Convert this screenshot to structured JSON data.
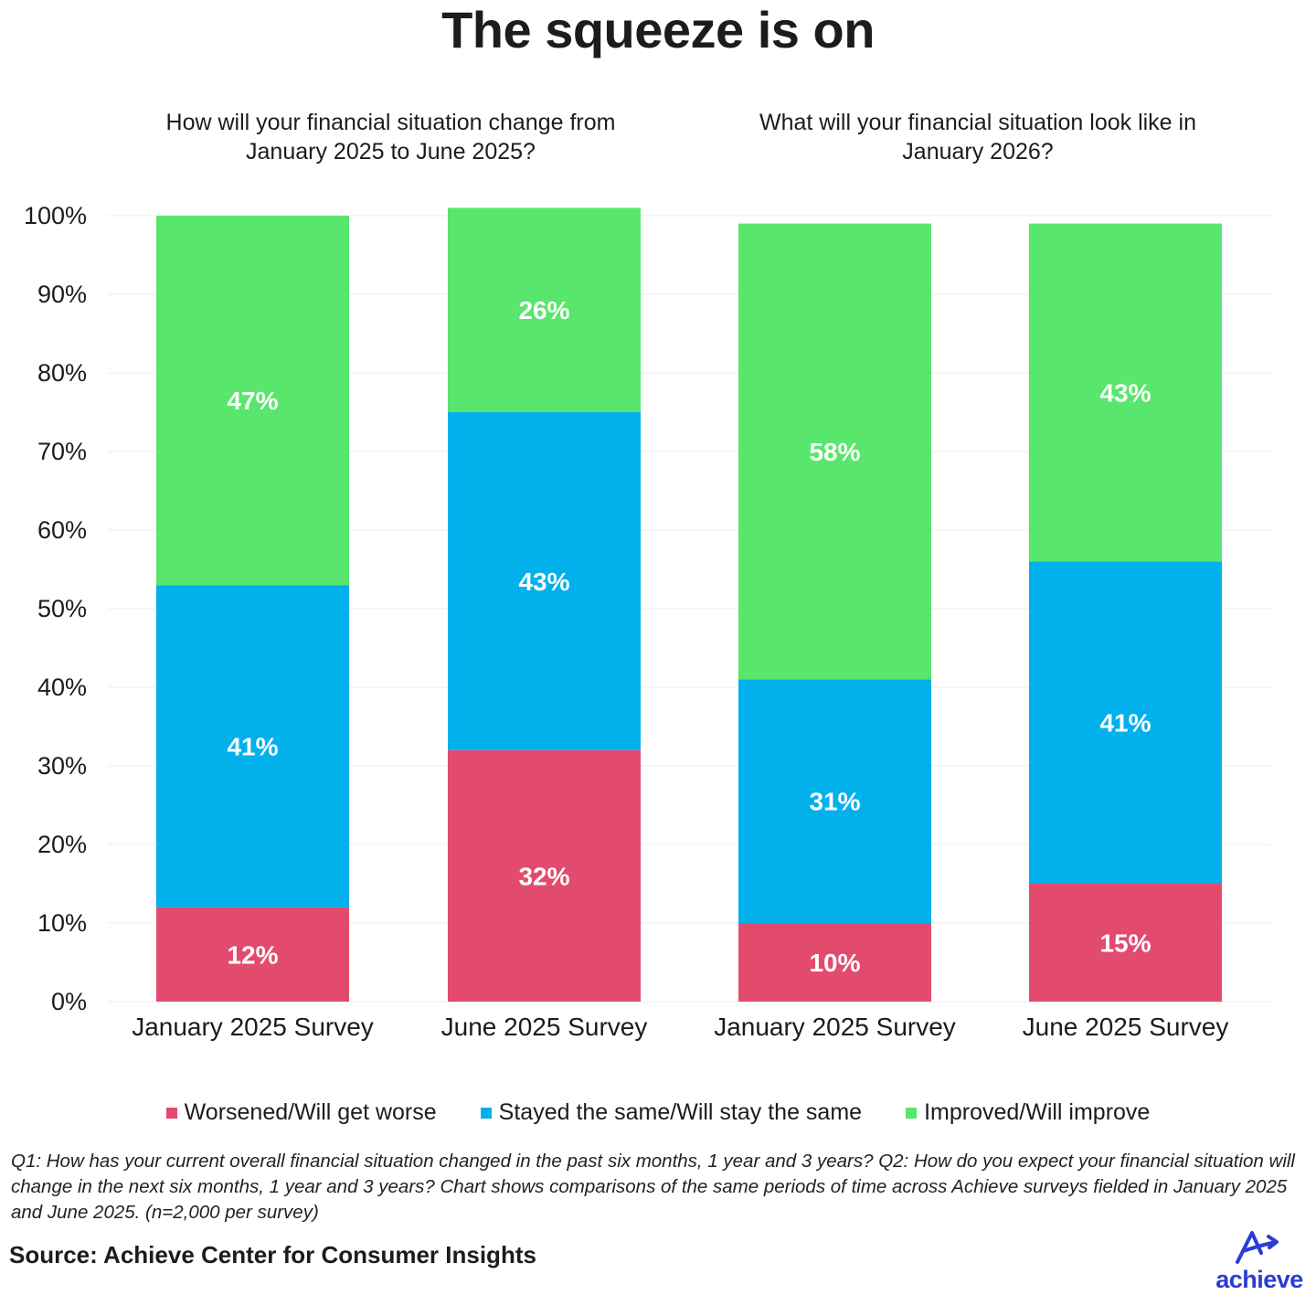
{
  "title": "The squeeze is on",
  "questions": {
    "q1": "How will your financial situation change from January 2025 to June 2025?",
    "q2": "What will your financial situation look like in January 2026?"
  },
  "colors": {
    "worse": "#e34b6e",
    "same": "#02b0ec",
    "improve": "#58e66c",
    "grid": "#eeeeee",
    "label": "#ffffff",
    "axis_text": "#1c1c1c"
  },
  "chart_data": {
    "type": "bar",
    "stacked": true,
    "categories": [
      "January 2025 Survey",
      "June 2025 Survey",
      "January 2025 Survey",
      "June 2025 Survey"
    ],
    "groups": [
      "How will your financial situation change from January 2025 to June 2025?",
      "How will your financial situation change from January 2025 to June 2025?",
      "What will your financial situation look like in January 2026?",
      "What will your financial situation look like in January 2026?"
    ],
    "series": [
      {
        "name": "Worsened/Will get worse",
        "color": "#e34b6e",
        "values": [
          12,
          32,
          10,
          15
        ],
        "labels": [
          "12%",
          "32%",
          "10%",
          "15%"
        ]
      },
      {
        "name": "Stayed the same/Will stay the same",
        "color": "#02b0ec",
        "values": [
          41,
          43,
          31,
          41
        ],
        "labels": [
          "41%",
          "43%",
          "31%",
          "41%"
        ]
      },
      {
        "name": "Improved/Will improve",
        "color": "#58e66c",
        "values": [
          47,
          26,
          58,
          43
        ],
        "labels": [
          "47%",
          "26%",
          "58%",
          "43%"
        ]
      }
    ],
    "yticks": [
      "0%",
      "10%",
      "20%",
      "30%",
      "40%",
      "50%",
      "60%",
      "70%",
      "80%",
      "90%",
      "100%"
    ],
    "ylim": [
      0,
      100
    ],
    "xlabel": "",
    "ylabel": "",
    "legend_position": "bottom"
  },
  "legend": [
    {
      "label": "Worsened/Will get worse",
      "color": "#e34b6e"
    },
    {
      "label": "Stayed the same/Will stay the same",
      "color": "#02b0ec"
    },
    {
      "label": "Improved/Will improve",
      "color": "#58e66c"
    }
  ],
  "note": "Q1: How has your current overall financial situation changed in the past six months, 1 year and 3 years? Q2: How do you expect your financial situation will change in the next six months, 1 year and 3 years? Chart shows comparisons of the same periods of time across Achieve surveys fielded in January 2025 and June 2025. (n=2,000 per survey)",
  "source": "Source: Achieve Center for Consumer Insights",
  "logo": {
    "text": "achieve",
    "color": "#2a3bd6"
  }
}
